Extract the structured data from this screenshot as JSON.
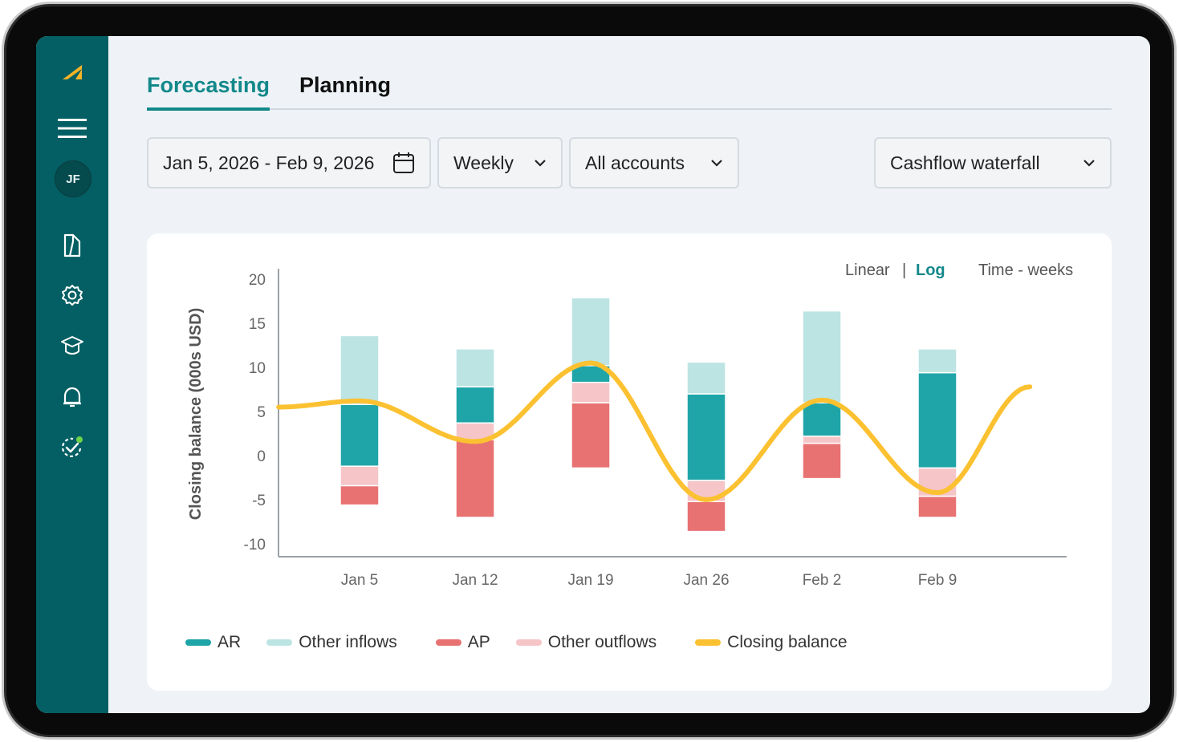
{
  "sidebar": {
    "avatar_initials": "JF",
    "icons": [
      "logo-icon",
      "menu-icon",
      "document-icon",
      "settings-icon",
      "graduation-icon",
      "bell-icon",
      "tasks-icon"
    ]
  },
  "tabs": [
    {
      "label": "Forecasting",
      "active": true
    },
    {
      "label": "Planning",
      "active": false
    }
  ],
  "filters": {
    "date_range": "Jan 5, 2026 - Feb 9, 2026",
    "frequency": "Weekly",
    "accounts": "All accounts",
    "view": "Cashflow waterfall"
  },
  "scale_toggle": {
    "linear": "Linear",
    "separator": "|",
    "log": "Log",
    "active": "Log"
  },
  "time_label": "Time - weeks",
  "colors": {
    "sidebar": "#035f63",
    "accent": "#12888a",
    "ar": "#1fa5a8",
    "other_inflows": "#bce4e3",
    "ap": "#e87272",
    "other_outflows": "#f5c5c7",
    "closing_balance": "#fbc131"
  },
  "chart_data": {
    "type": "bar",
    "ylabel": "Closing balance (000s USD)",
    "ylim": [
      -10,
      20
    ],
    "yticks": [
      20,
      15,
      10,
      5,
      0,
      -5,
      -10
    ],
    "categories": [
      "Jan 5",
      "Jan 12",
      "Jan 19",
      "Jan 26",
      "Feb 2",
      "Feb 9"
    ],
    "series": [
      {
        "name": "AR",
        "ranges": [
          [
            -1.2,
            5.8
          ],
          [
            3.7,
            7.8
          ],
          [
            8.3,
            10.2
          ],
          [
            -2.8,
            7.0
          ],
          [
            2.2,
            6.0
          ],
          [
            -1.4,
            9.4
          ]
        ]
      },
      {
        "name": "Other inflows",
        "ranges": [
          [
            5.8,
            13.6
          ],
          [
            7.8,
            12.1
          ],
          [
            10.2,
            17.9
          ],
          [
            7.0,
            10.6
          ],
          [
            6.0,
            16.4
          ],
          [
            9.4,
            12.1
          ]
        ]
      },
      {
        "name": "AP",
        "ranges": [
          [
            -5.6,
            -3.4
          ],
          [
            -7.0,
            1.8
          ],
          [
            -1.4,
            6.0
          ],
          [
            -8.6,
            -5.2
          ],
          [
            -2.6,
            1.4
          ],
          [
            -7.0,
            -4.6
          ]
        ]
      },
      {
        "name": "Other outflows",
        "ranges": [
          [
            -3.4,
            -1.2
          ],
          [
            1.8,
            3.7
          ],
          [
            6.0,
            8.3
          ],
          [
            -5.2,
            -2.8
          ],
          [
            1.4,
            2.2
          ],
          [
            -4.6,
            -1.4
          ]
        ]
      }
    ],
    "line": {
      "name": "Closing balance",
      "x": [
        -0.7,
        0,
        1,
        2,
        3,
        4,
        5,
        5.8
      ],
      "y": [
        5.5,
        6.2,
        1.6,
        10.5,
        -5.0,
        6.3,
        -4.2,
        7.8
      ]
    },
    "legend_position": "bottom"
  }
}
